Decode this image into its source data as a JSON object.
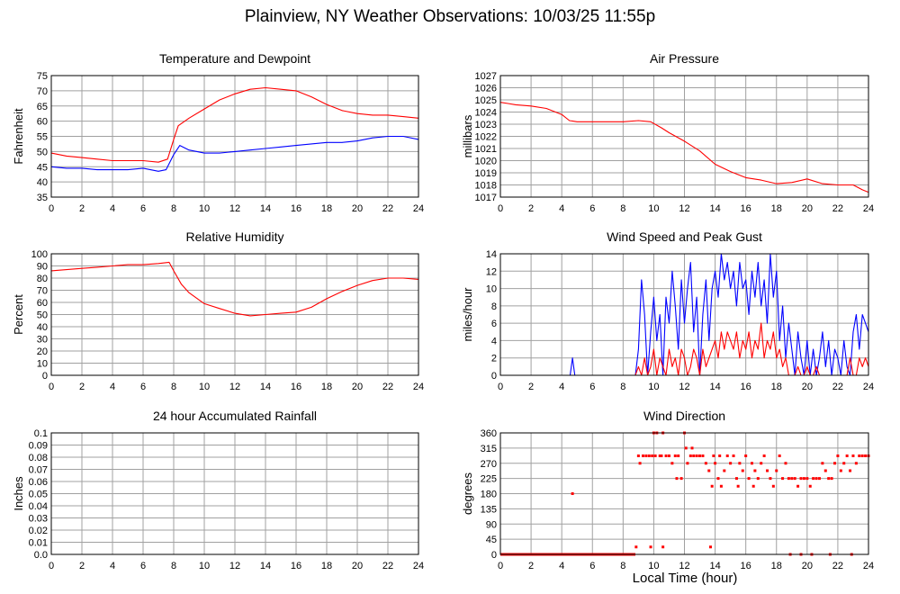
{
  "page": {
    "title": "Plainview, NY Weather Observations: 10/03/25 11:55p",
    "x_axis_title": "Local Time (hour)"
  },
  "colors": {
    "red": "#ff0000",
    "blue": "#0000ff",
    "grid": "#a0a0a0",
    "frame": "#000000"
  },
  "chart_data": [
    {
      "type": "line",
      "title": "Temperature and Dewpoint",
      "xlabel": "",
      "ylabel": "Fahrenheit",
      "xlim": [
        0,
        24
      ],
      "ylim": [
        35,
        75
      ],
      "xticks": [
        0,
        2,
        4,
        6,
        8,
        10,
        12,
        14,
        16,
        18,
        20,
        22,
        24
      ],
      "yticks": [
        35,
        40,
        45,
        50,
        55,
        60,
        65,
        70,
        75
      ],
      "grid": true,
      "series": [
        {
          "color": "red",
          "x": [
            0,
            1,
            2,
            3,
            4,
            5,
            6,
            7,
            7.6,
            8,
            8.3,
            9,
            10,
            11,
            12,
            13,
            14,
            15,
            16,
            17,
            18,
            19,
            20,
            21,
            22,
            23,
            24
          ],
          "y": [
            49.5,
            48.5,
            48,
            47.5,
            47,
            47,
            47,
            46.5,
            47.5,
            54,
            58.5,
            61,
            64,
            67,
            69,
            70.5,
            71,
            70.5,
            70,
            68,
            65.5,
            63.5,
            62.5,
            62,
            62,
            61.5,
            61
          ]
        },
        {
          "color": "blue",
          "x": [
            0,
            1,
            2,
            3,
            4,
            5,
            6,
            7,
            7.5,
            8,
            8.4,
            9,
            10,
            11,
            12,
            13,
            14,
            15,
            16,
            17,
            18,
            19,
            20,
            21,
            22,
            23,
            24
          ],
          "y": [
            45,
            44.5,
            44.5,
            44,
            44,
            44,
            44.5,
            43.5,
            44,
            49,
            52,
            50.5,
            49.5,
            49.5,
            50,
            50.5,
            51,
            51.5,
            52,
            52.5,
            53,
            53,
            53.5,
            54.5,
            55,
            55,
            54
          ]
        }
      ]
    },
    {
      "type": "line",
      "title": "Air Pressure",
      "xlabel": "",
      "ylabel": "millibars",
      "xlim": [
        0,
        24
      ],
      "ylim": [
        1017,
        1027
      ],
      "xticks": [
        0,
        2,
        4,
        6,
        8,
        10,
        12,
        14,
        16,
        18,
        20,
        22,
        24
      ],
      "yticks": [
        1017,
        1018,
        1019,
        1020,
        1021,
        1022,
        1023,
        1024,
        1025,
        1026,
        1027
      ],
      "grid": true,
      "series": [
        {
          "color": "red",
          "x": [
            0,
            0.5,
            1,
            2,
            3,
            4,
            4.5,
            5,
            6,
            7,
            8,
            9,
            9.8,
            10.5,
            11,
            12,
            13,
            14,
            15,
            16,
            17,
            18,
            19,
            20,
            21,
            22,
            23,
            23.6,
            24
          ],
          "y": [
            1024.8,
            1024.7,
            1024.6,
            1024.5,
            1024.3,
            1023.8,
            1023.3,
            1023.2,
            1023.2,
            1023.2,
            1023.2,
            1023.3,
            1023.2,
            1022.7,
            1022.3,
            1021.6,
            1020.8,
            1019.7,
            1019.1,
            1018.6,
            1018.4,
            1018.1,
            1018.2,
            1018.5,
            1018.1,
            1018,
            1018,
            1017.6,
            1017.4
          ]
        }
      ]
    },
    {
      "type": "line",
      "title": "Relative Humidity",
      "xlabel": "",
      "ylabel": "Percent",
      "xlim": [
        0,
        24
      ],
      "ylim": [
        0,
        100
      ],
      "xticks": [
        0,
        2,
        4,
        6,
        8,
        10,
        12,
        14,
        16,
        18,
        20,
        22,
        24
      ],
      "yticks": [
        0,
        10,
        20,
        30,
        40,
        50,
        60,
        70,
        80,
        90,
        100
      ],
      "grid": true,
      "series": [
        {
          "color": "red",
          "x": [
            0,
            1,
            2,
            3,
            4,
            5,
            6,
            7,
            7.7,
            8,
            8.5,
            9,
            10,
            11,
            12,
            13,
            14,
            15,
            16,
            17,
            18,
            19,
            20,
            21,
            22,
            23,
            24
          ],
          "y": [
            86,
            87,
            88,
            89,
            90,
            91,
            91,
            92,
            93,
            86,
            75,
            68,
            59,
            55,
            51,
            49,
            50,
            51,
            52,
            56,
            63,
            69,
            74,
            78,
            80,
            80,
            79
          ]
        }
      ]
    },
    {
      "type": "line",
      "title": "Wind Speed and Peak Gust",
      "xlabel": "",
      "ylabel": "miles/hour",
      "xlim": [
        0,
        24
      ],
      "ylim": [
        0,
        14
      ],
      "xticks": [
        0,
        2,
        4,
        6,
        8,
        10,
        12,
        14,
        16,
        18,
        20,
        22,
        24
      ],
      "yticks": [
        0,
        2,
        4,
        6,
        8,
        10,
        12,
        14
      ],
      "grid": true,
      "series": [
        {
          "color": "blue",
          "x": [
            0,
            4.55,
            4.7,
            4.85,
            8.8,
            9,
            9.2,
            9.4,
            9.6,
            9.8,
            10,
            10.2,
            10.4,
            10.6,
            10.8,
            11,
            11.2,
            11.4,
            11.6,
            11.8,
            12,
            12.2,
            12.4,
            12.6,
            12.8,
            13,
            13.2,
            13.4,
            13.6,
            13.8,
            14,
            14.2,
            14.4,
            14.6,
            14.8,
            15,
            15.2,
            15.4,
            15.6,
            15.8,
            16,
            16.2,
            16.4,
            16.6,
            16.8,
            17,
            17.2,
            17.4,
            17.6,
            17.8,
            18,
            18.2,
            18.4,
            18.6,
            18.8,
            19,
            19.2,
            19.4,
            19.6,
            19.8,
            20,
            20.2,
            20.4,
            20.6,
            20.8,
            21,
            21.2,
            21.4,
            21.6,
            21.8,
            22,
            22.2,
            22.4,
            22.6,
            22.8,
            23,
            23.2,
            23.4,
            23.6,
            23.8,
            24
          ],
          "y": [
            0,
            0,
            2,
            0,
            0,
            3,
            11,
            7,
            0,
            5,
            9,
            4,
            7,
            0,
            9,
            6,
            12,
            8,
            3,
            11,
            6,
            10,
            13,
            5,
            9,
            0,
            7,
            11,
            4,
            10,
            12,
            9,
            14,
            11,
            13,
            10,
            12,
            8,
            13,
            10,
            11,
            7,
            12,
            9,
            13,
            8,
            11,
            6,
            14,
            9,
            12,
            4,
            8,
            2,
            6,
            3,
            0,
            5,
            2,
            0,
            4,
            0,
            3,
            0,
            2,
            5,
            1,
            4,
            0,
            3,
            2,
            0,
            4,
            1,
            0,
            5,
            7,
            3,
            7,
            6,
            5
          ]
        },
        {
          "color": "red",
          "x": [
            0,
            8.8,
            9,
            9.2,
            9.4,
            9.6,
            9.8,
            10,
            10.2,
            10.4,
            10.6,
            10.8,
            11,
            11.2,
            11.4,
            11.6,
            11.8,
            12,
            12.2,
            12.4,
            12.6,
            12.8,
            13,
            13.2,
            13.4,
            13.6,
            13.8,
            14,
            14.2,
            14.4,
            14.6,
            14.8,
            15,
            15.2,
            15.4,
            15.6,
            15.8,
            16,
            16.2,
            16.4,
            16.6,
            16.8,
            17,
            17.2,
            17.4,
            17.6,
            17.8,
            18,
            18.2,
            18.4,
            18.6,
            18.8,
            19,
            19.2,
            19.4,
            19.6,
            19.8,
            20,
            20.2,
            20.4,
            20.6,
            20.8,
            21,
            21.2,
            21.4,
            21.6,
            21.8,
            22,
            22.2,
            22.4,
            22.6,
            22.8,
            23,
            23.2,
            23.4,
            23.6,
            23.8,
            24
          ],
          "y": [
            0,
            0,
            1,
            0,
            2,
            0,
            1,
            3,
            0,
            2,
            1,
            0,
            3,
            1,
            2,
            0,
            3,
            2,
            0,
            1,
            3,
            2,
            0,
            3,
            1,
            2,
            3,
            4,
            2,
            5,
            3,
            5,
            4,
            3,
            5,
            2,
            4,
            3,
            5,
            2,
            4,
            3,
            6,
            2,
            4,
            3,
            5,
            2,
            3,
            1,
            2,
            0,
            0,
            0,
            1,
            0,
            0,
            1,
            0,
            0,
            1,
            0,
            0,
            0,
            0,
            0,
            0,
            0,
            0,
            0,
            0,
            2,
            0,
            0,
            2,
            1,
            2,
            1
          ]
        }
      ]
    },
    {
      "type": "line",
      "title": "24 hour Accumulated Rainfall",
      "xlabel": "",
      "ylabel": "Inches",
      "xlim": [
        0,
        24
      ],
      "ylim": [
        0,
        0.1
      ],
      "xticks": [
        0,
        2,
        4,
        6,
        8,
        10,
        12,
        14,
        16,
        18,
        20,
        22,
        24
      ],
      "yticks": [
        0.0,
        0.01,
        0.02,
        0.03,
        0.04,
        0.05,
        0.06,
        0.07,
        0.08,
        0.09,
        0.1
      ],
      "ytick_labels": [
        "0.0",
        "0.01",
        "0.02",
        "0.03",
        "0.04",
        "0.05",
        "0.06",
        "0.07",
        "0.08",
        "0.09",
        "0.1"
      ],
      "grid": true,
      "series": [
        {
          "color": "red",
          "x": [
            0,
            24
          ],
          "y": [
            0,
            0
          ]
        }
      ]
    },
    {
      "type": "scatter",
      "title": "Wind Direction",
      "xlabel": "Local Time (hour)",
      "ylabel": "degrees",
      "xlim": [
        0,
        24
      ],
      "ylim": [
        0,
        360
      ],
      "xticks": [
        0,
        2,
        4,
        6,
        8,
        10,
        12,
        14,
        16,
        18,
        20,
        22,
        24
      ],
      "yticks": [
        0,
        45,
        90,
        135,
        180,
        225,
        270,
        315,
        360
      ],
      "grid": true,
      "series": [
        {
          "color": "red",
          "x": [
            4.7,
            8.85,
            9.0,
            9.1,
            9.3,
            9.5,
            9.7,
            9.9,
            10.0,
            10.1,
            10.2,
            10.4,
            10.5,
            10.6,
            10.8,
            11.0,
            11.2,
            11.4,
            11.5,
            11.6,
            11.8,
            12.0,
            12.1,
            12.2,
            12.4,
            12.5,
            12.6,
            12.8,
            13.0,
            13.2,
            13.4,
            13.6,
            13.8,
            13.9,
            14.0,
            14.2,
            14.3,
            14.4,
            14.6,
            14.8,
            15.0,
            15.2,
            15.4,
            15.5,
            15.6,
            15.8,
            16.0,
            16.2,
            16.4,
            16.5,
            16.6,
            16.8,
            17.0,
            17.2,
            17.4,
            17.6,
            17.8,
            18.0,
            18.2,
            18.4,
            18.6,
            18.8,
            19.0,
            19.2,
            19.4,
            19.6,
            19.8,
            20.0,
            20.2,
            20.4,
            20.6,
            20.8,
            21.0,
            21.2,
            21.4,
            21.6,
            21.8,
            22.0,
            22.2,
            22.4,
            22.6,
            22.8,
            23.0,
            23.2,
            23.4,
            23.6,
            23.8,
            24.0,
            9.8,
            10.6,
            13.7,
            18.9,
            19.6,
            20.3,
            21.5,
            22.9
          ],
          "y": [
            180,
            22,
            292,
            270,
            292,
            292,
            292,
            292,
            360,
            292,
            360,
            292,
            292,
            360,
            292,
            292,
            270,
            292,
            225,
            292,
            225,
            360,
            315,
            270,
            292,
            315,
            292,
            292,
            292,
            292,
            270,
            248,
            202,
            292,
            270,
            225,
            292,
            202,
            248,
            292,
            270,
            292,
            225,
            202,
            270,
            248,
            292,
            225,
            270,
            202,
            248,
            225,
            270,
            292,
            248,
            225,
            202,
            248,
            292,
            225,
            270,
            225,
            225,
            225,
            202,
            225,
            225,
            225,
            202,
            225,
            225,
            225,
            270,
            248,
            225,
            225,
            270,
            292,
            248,
            270,
            292,
            248,
            292,
            270,
            292,
            292,
            292,
            292,
            22,
            22,
            22,
            0,
            0,
            0,
            0,
            0
          ]
        }
      ],
      "baseline_points": {
        "color": "red",
        "value": 0,
        "from": 0,
        "to": 8.8
      }
    }
  ]
}
